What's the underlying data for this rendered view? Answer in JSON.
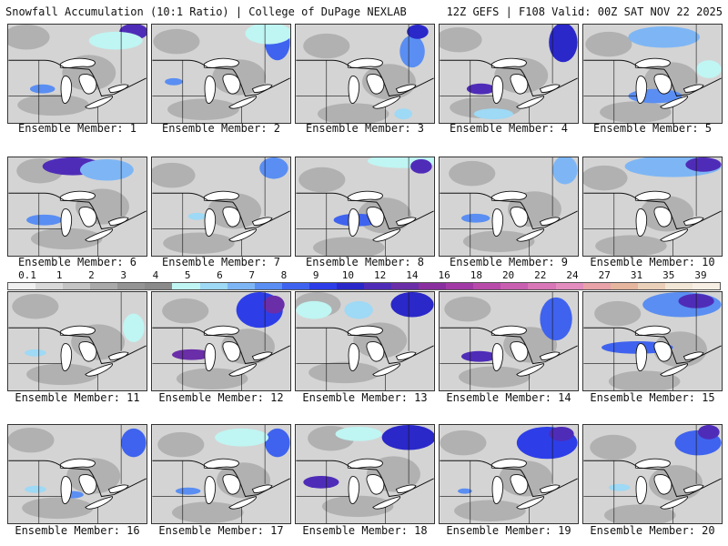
{
  "header": {
    "left": "Snowfall Accumulation (10:1 Ratio) | College of DuPage NEXLAB",
    "right": "12Z GEFS | F108 Valid: 00Z SAT NOV 22 2025"
  },
  "members": [
    "Ensemble Member: 1",
    "Ensemble Member: 2",
    "Ensemble Member: 3",
    "Ensemble Member: 4",
    "Ensemble Member: 5",
    "Ensemble Member: 6",
    "Ensemble Member: 7",
    "Ensemble Member: 8",
    "Ensemble Member: 9",
    "Ensemble Member: 10",
    "Ensemble Member: 11",
    "Ensemble Member: 12",
    "Ensemble Member: 13",
    "Ensemble Member: 14",
    "Ensemble Member: 15",
    "Ensemble Member: 16",
    "Ensemble Member: 17",
    "Ensemble Member: 18",
    "Ensemble Member: 19",
    "Ensemble Member: 20"
  ],
  "legend": {
    "labels": [
      "0.1",
      "1",
      "2",
      "3",
      "4",
      "5",
      "6",
      "7",
      "8",
      "9",
      "10",
      "12",
      "14",
      "16",
      "18",
      "20",
      "22",
      "24",
      "27",
      "31",
      "35",
      "39"
    ],
    "colors": [
      "#f0f0f0",
      "#d9d9d9",
      "#c4c4c4",
      "#a9a9a9",
      "#949494",
      "#8a8a8a",
      "#bff5f2",
      "#9ed9f5",
      "#7eb6f5",
      "#5a8ef2",
      "#3f63ee",
      "#2d3ee8",
      "#2a28c9",
      "#4f2cb8",
      "#6a2ea8",
      "#8a2fa0",
      "#a23aa5",
      "#b84aa9",
      "#c85fb0",
      "#d876b7",
      "#e38cbe",
      "#e8a2a8",
      "#e6b59e",
      "#ead0b8",
      "#f2e6d6",
      "#f7efe4"
    ]
  },
  "colors": {
    "land": "#d4d4d4",
    "dark_land": "#9a9a9a",
    "lake": "#ffffff",
    "border": "#111111"
  }
}
